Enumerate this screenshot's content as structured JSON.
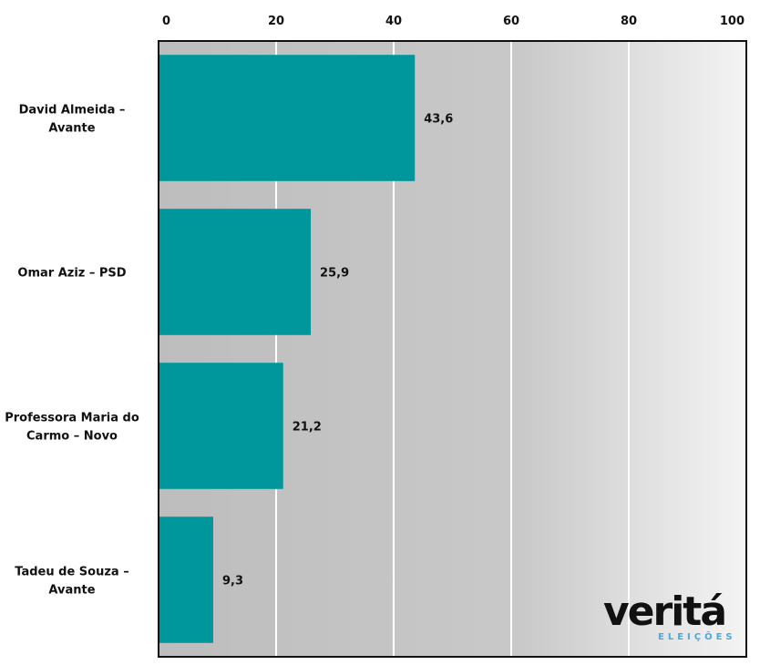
{
  "chart_data": {
    "type": "bar",
    "orientation": "horizontal",
    "categories": [
      [
        "David Almeida –",
        "Avante"
      ],
      [
        "Omar Aziz – PSD"
      ],
      [
        "Professora Maria do",
        "Carmo – Novo"
      ],
      [
        "Tadeu de Souza –",
        "Avante"
      ]
    ],
    "values": [
      43.6,
      25.9,
      21.2,
      9.3
    ],
    "value_labels": [
      "43,6",
      "25,9",
      "21,2",
      "9,3"
    ],
    "xlim": [
      0,
      100
    ],
    "xticks": [
      0,
      20,
      40,
      60,
      80,
      100
    ],
    "tick_position": "top",
    "grid": true,
    "bar_color": "#00979c",
    "background_gradient": [
      "#bdbdbd",
      "#f4f4f4"
    ]
  },
  "logo": {
    "name": "veritá",
    "subtitle": "ELEIÇÕES",
    "accent_color": "#4aa8e0"
  }
}
